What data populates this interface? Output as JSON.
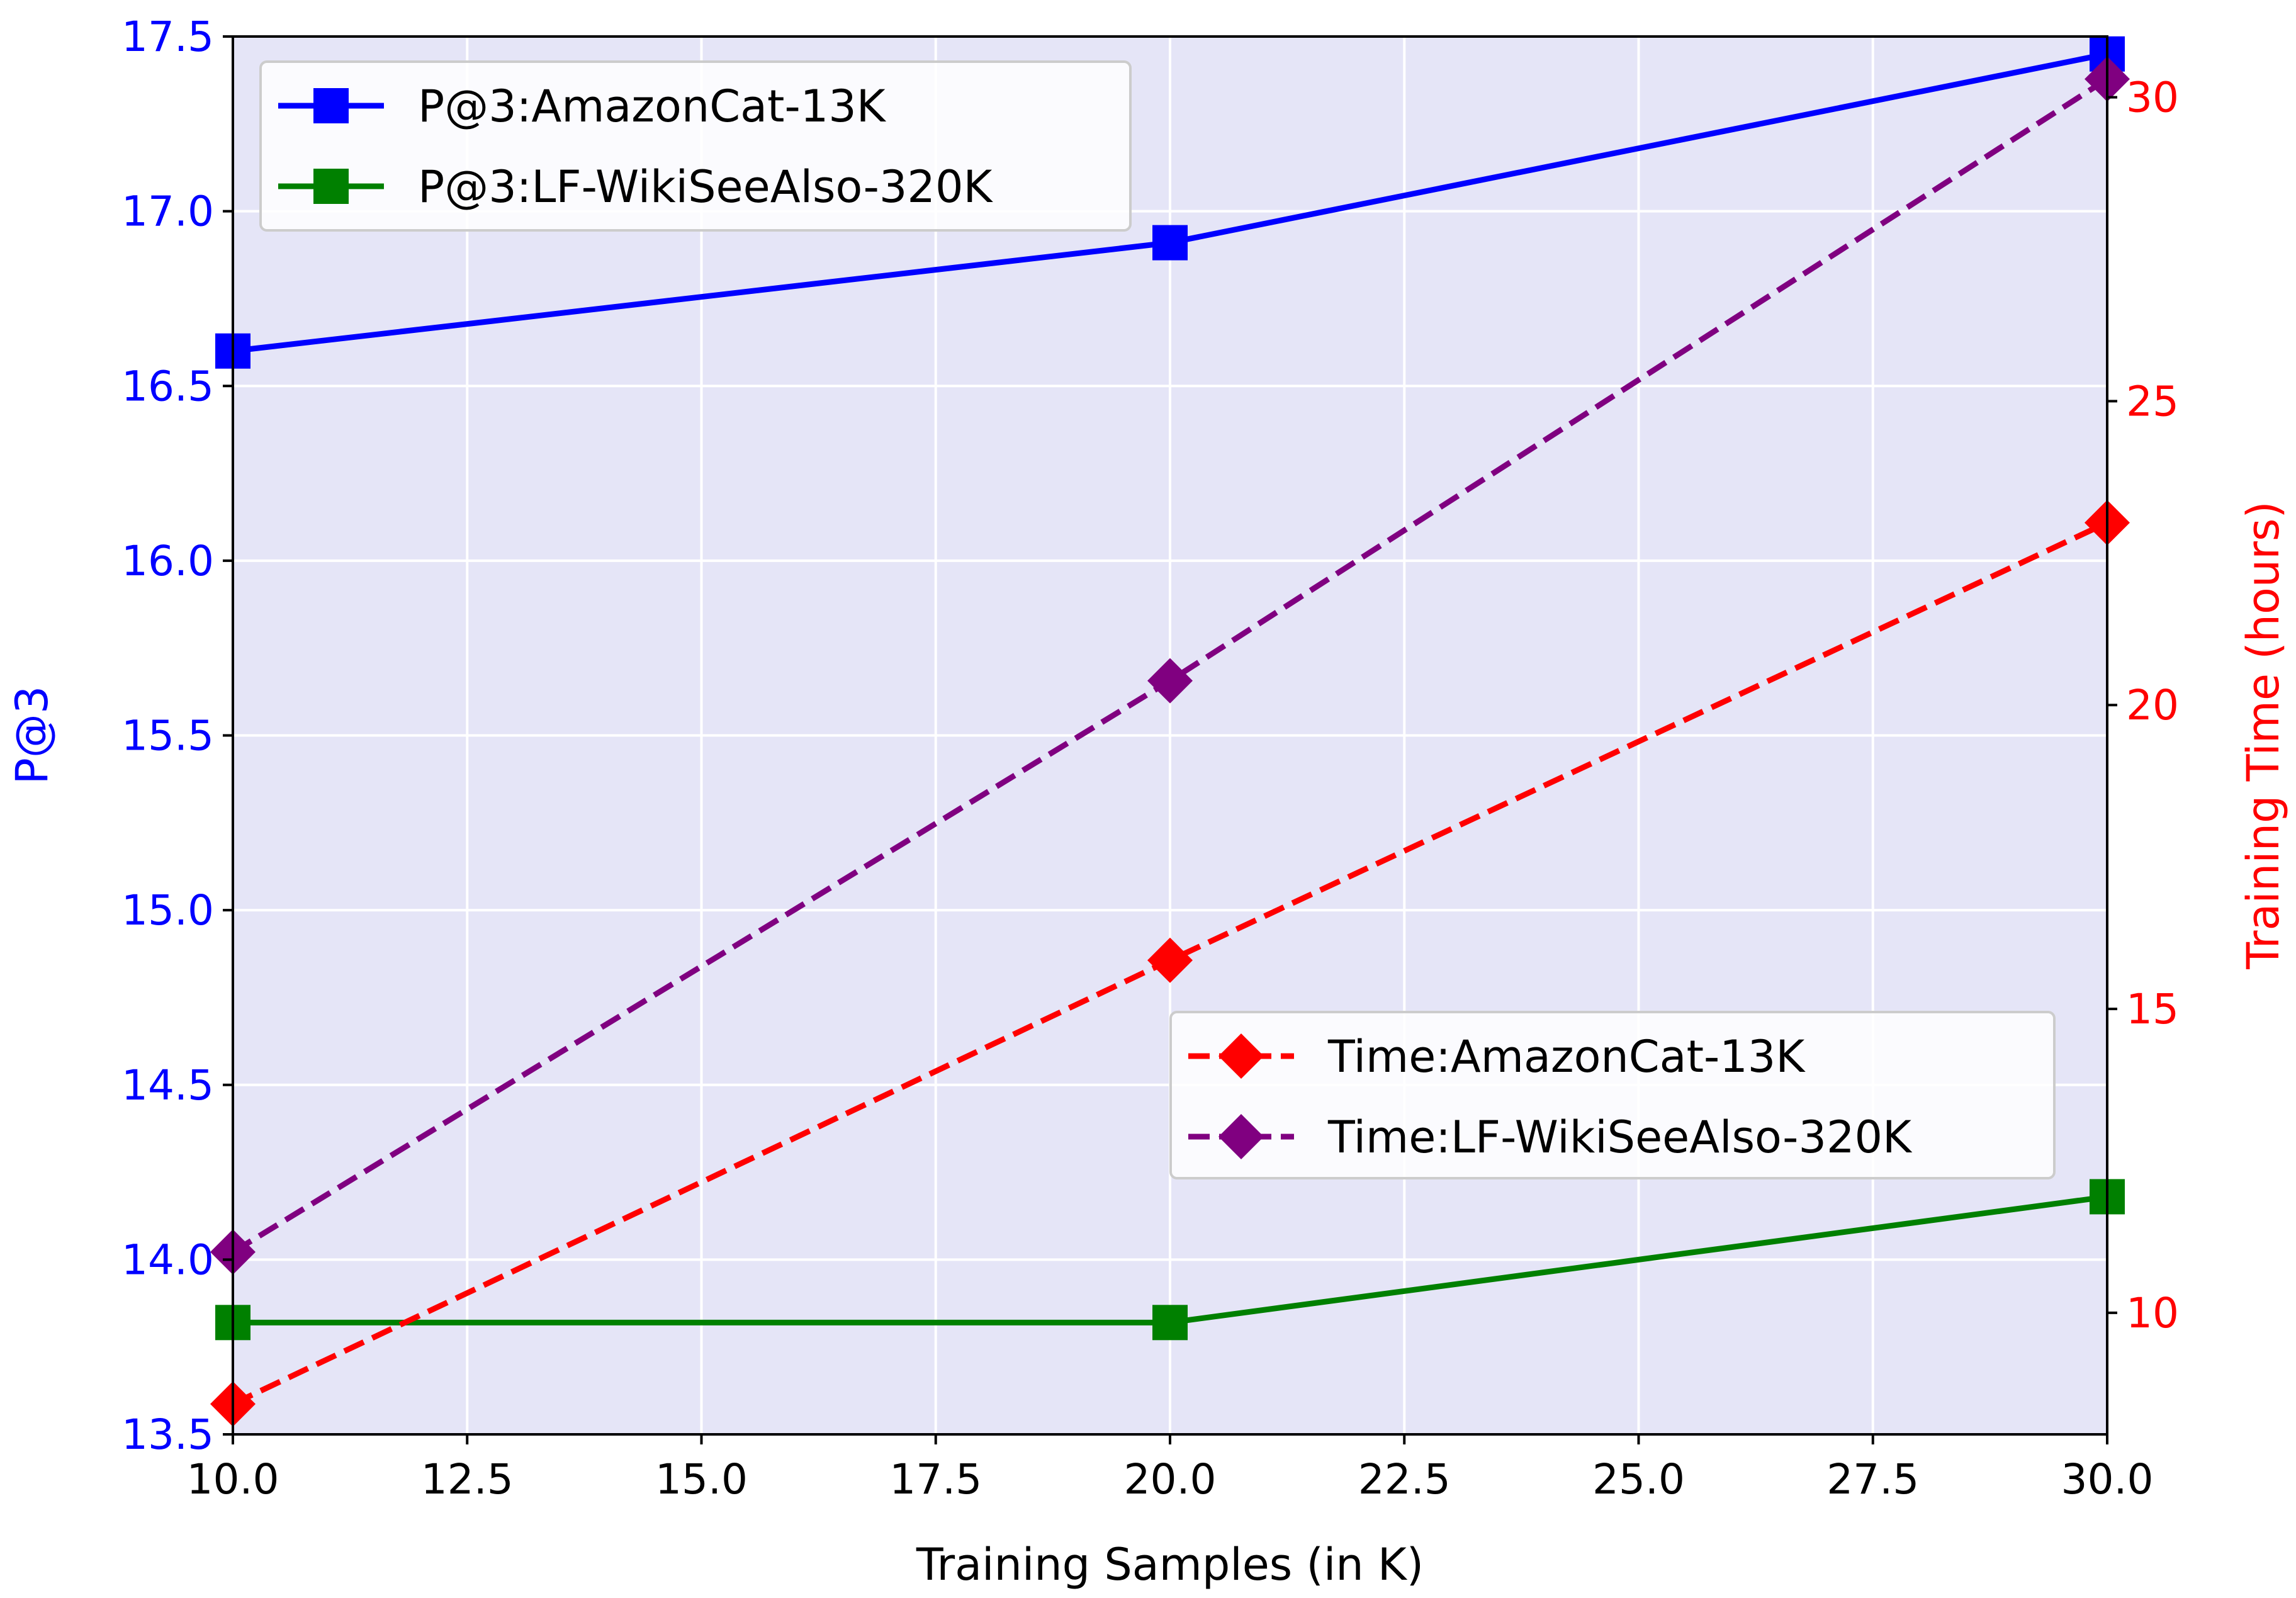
{
  "chart_data": {
    "type": "line",
    "xlabel": "Training Samples (in K)",
    "ylabel_left": "P@3",
    "ylabel_right": "Training Time (hours)",
    "xlim": [
      10.0,
      30.0
    ],
    "ylim_left": [
      13.5,
      17.5
    ],
    "ylim_right": [
      8.0,
      31.0
    ],
    "x_ticks": [
      "10.0",
      "12.5",
      "15.0",
      "17.5",
      "20.0",
      "22.5",
      "25.0",
      "27.5",
      "30.0"
    ],
    "y_left_ticks": [
      "13.5",
      "14.0",
      "14.5",
      "15.0",
      "15.5",
      "16.0",
      "16.5",
      "17.0",
      "17.5"
    ],
    "y_right_ticks": [
      "10",
      "15",
      "20",
      "25",
      "30"
    ],
    "grid": true,
    "background": "#e5e5f7",
    "x": [
      10,
      20,
      30
    ],
    "series": [
      {
        "name": "P@3:AmazonCat-13K",
        "axis": "left",
        "values": [
          16.6,
          16.91,
          17.45
        ],
        "color": "#0000ff",
        "linestyle": "solid",
        "marker": "square"
      },
      {
        "name": "P@3:LF-WikiSeeAlso-320K",
        "axis": "left",
        "values": [
          13.82,
          13.82,
          14.18
        ],
        "color": "#008000",
        "linestyle": "solid",
        "marker": "square"
      },
      {
        "name": "Time:AmazonCat-13K",
        "axis": "right",
        "values": [
          8.5,
          15.8,
          23.0
        ],
        "color": "#ff0000",
        "linestyle": "dashed",
        "marker": "diamond"
      },
      {
        "name": "Time:LF-WikiSeeAlso-320K",
        "axis": "right",
        "values": [
          11.0,
          20.4,
          30.3
        ],
        "color": "#800080",
        "linestyle": "dashed",
        "marker": "diamond"
      }
    ],
    "legends": [
      {
        "placement": "top-left",
        "series": [
          0,
          1
        ]
      },
      {
        "placement": "center-right",
        "series": [
          2,
          3
        ]
      }
    ],
    "colors": {
      "left_axis": "#0000ff",
      "right_axis": "#ff0000"
    }
  }
}
